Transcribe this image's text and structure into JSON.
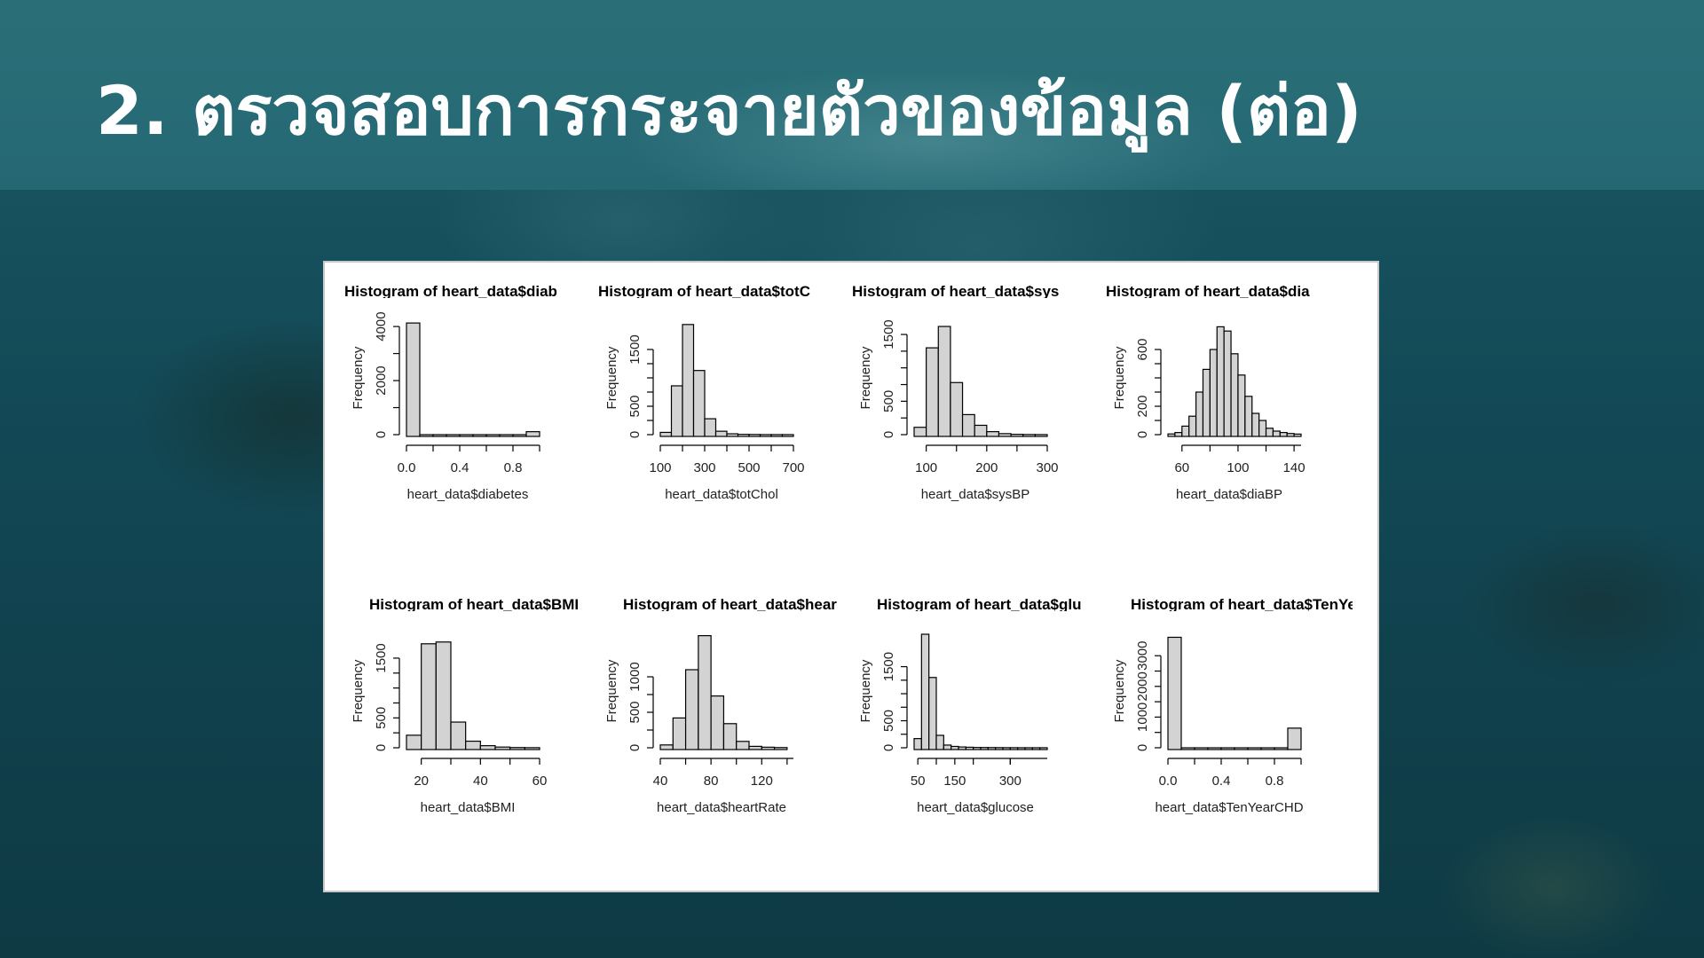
{
  "slide": {
    "title": "2. ตรวจสอบการกระจายตัวของข้อมูล (ต่อ)"
  },
  "colors": {
    "bar_fill": "#d3d3d3",
    "bar_stroke": "#000000",
    "title_text": "#ffffff",
    "background": "#134a57"
  },
  "chart_data": [
    {
      "type": "bar",
      "title": "Histogram of heart_data$diab",
      "xlabel": "heart_data$diabetes",
      "ylabel": "Frequency",
      "xlim": [
        0,
        1
      ],
      "ylim": [
        0,
        4200
      ],
      "x_ticks": [
        0.0,
        0.4,
        0.8
      ],
      "x_tick_labels": [
        "0.0",
        "0.4",
        "0.8"
      ],
      "y_ticks": [
        0,
        2000,
        4000
      ],
      "y_tick_labels": [
        "0",
        "2000",
        "4000"
      ],
      "bin_edges": [
        0.0,
        0.1,
        0.2,
        0.3,
        0.4,
        0.5,
        0.6,
        0.7,
        0.8,
        0.9,
        1.0
      ],
      "counts": [
        4130,
        0,
        0,
        0,
        0,
        0,
        0,
        0,
        0,
        110
      ]
    },
    {
      "type": "bar",
      "title": "Histogram of heart_data$totC",
      "xlabel": "heart_data$totChol",
      "ylabel": "Frequency",
      "xlim": [
        100,
        700
      ],
      "ylim": [
        0,
        2000
      ],
      "x_ticks": [
        100,
        300,
        500,
        700
      ],
      "x_tick_labels": [
        "100",
        "300",
        "500",
        "700"
      ],
      "y_ticks": [
        0,
        500,
        1500
      ],
      "y_tick_labels": [
        "0",
        "500",
        "1500"
      ],
      "bin_edges": [
        100,
        150,
        200,
        250,
        300,
        350,
        400,
        450,
        500,
        550,
        600,
        650,
        700
      ],
      "counts": [
        40,
        860,
        1940,
        1130,
        280,
        60,
        15,
        5,
        3,
        1,
        1,
        1
      ]
    },
    {
      "type": "bar",
      "title": "Histogram of heart_data$sys",
      "xlabel": "heart_data$sysBP",
      "ylabel": "Frequency",
      "xlim": [
        80,
        300
      ],
      "ylim": [
        0,
        1700
      ],
      "x_ticks": [
        100,
        200,
        300
      ],
      "x_tick_labels": [
        "100",
        "200",
        "300"
      ],
      "y_ticks": [
        0,
        500,
        1500
      ],
      "y_tick_labels": [
        "0",
        "500",
        "1500"
      ],
      "bin_edges": [
        80,
        100,
        120,
        140,
        160,
        180,
        200,
        220,
        240,
        260,
        280,
        300
      ],
      "counts": [
        110,
        1300,
        1620,
        780,
        300,
        140,
        45,
        15,
        5,
        2,
        1
      ]
    },
    {
      "type": "bar",
      "title": "Histogram of heart_data$dia",
      "xlabel": "heart_data$diaBP",
      "ylabel": "Frequency",
      "xlim": [
        50,
        145
      ],
      "ylim": [
        0,
        800
      ],
      "x_ticks": [
        60,
        100,
        140
      ],
      "x_tick_labels": [
        "60",
        "100",
        "140"
      ],
      "y_ticks": [
        0,
        200,
        600
      ],
      "y_tick_labels": [
        "0",
        "200",
        "600"
      ],
      "bin_edges": [
        50,
        55,
        60,
        65,
        70,
        75,
        80,
        85,
        90,
        95,
        100,
        105,
        110,
        115,
        120,
        125,
        130,
        135,
        140,
        145
      ],
      "counts": [
        5,
        15,
        60,
        130,
        300,
        460,
        600,
        760,
        730,
        570,
        420,
        270,
        150,
        100,
        45,
        25,
        15,
        8,
        4
      ]
    },
    {
      "type": "bar",
      "title": "Histogram of heart_data$BMI",
      "xlabel": "heart_data$BMI",
      "ylabel": "Frequency",
      "xlim": [
        15,
        60
      ],
      "ylim": [
        0,
        1900
      ],
      "x_ticks": [
        20,
        40,
        60
      ],
      "x_tick_labels": [
        "20",
        "40",
        "60"
      ],
      "y_ticks": [
        0,
        500,
        1500
      ],
      "y_tick_labels": [
        "0",
        "500",
        "1500"
      ],
      "bin_edges": [
        15,
        20,
        25,
        30,
        35,
        40,
        45,
        50,
        55,
        60
      ],
      "counts": [
        210,
        1740,
        1770,
        430,
        110,
        35,
        12,
        4,
        2
      ]
    },
    {
      "type": "bar",
      "title": "Histogram of heart_data$hear",
      "xlabel": "heart_data$heartRate",
      "ylabel": "Frequency",
      "xlim": [
        40,
        145
      ],
      "ylim": [
        0,
        1600
      ],
      "x_ticks": [
        40,
        80,
        120
      ],
      "x_tick_labels": [
        "40",
        "80",
        "120"
      ],
      "y_ticks": [
        0,
        500,
        1000
      ],
      "y_tick_labels": [
        "0",
        "500",
        "1000"
      ],
      "bin_edges": [
        40,
        50,
        60,
        70,
        80,
        90,
        100,
        110,
        120,
        130,
        140
      ],
      "counts": [
        40,
        420,
        1100,
        1580,
        730,
        340,
        90,
        20,
        8,
        3
      ]
    },
    {
      "type": "bar",
      "title": "Histogram of heart_data$glu",
      "xlabel": "heart_data$glucose",
      "ylabel": "Frequency",
      "xlim": [
        40,
        400
      ],
      "ylim": [
        0,
        2100
      ],
      "x_ticks": [
        50,
        150,
        300
      ],
      "x_tick_labels": [
        "50",
        "150",
        "300"
      ],
      "y_ticks": [
        0,
        500,
        1500
      ],
      "y_tick_labels": [
        "0",
        "500",
        "1500"
      ],
      "bin_edges": [
        40,
        60,
        80,
        100,
        120,
        140,
        160,
        180,
        200,
        220,
        240,
        260,
        280,
        300,
        320,
        340,
        360,
        380,
        400
      ],
      "counts": [
        170,
        2100,
        1300,
        230,
        50,
        25,
        15,
        10,
        6,
        5,
        4,
        3,
        2,
        2,
        1,
        1,
        1,
        1
      ]
    },
    {
      "type": "bar",
      "title": "Histogram of heart_data$TenYe",
      "xlabel": "heart_data$TenYearCHD",
      "ylabel": "Frequency",
      "xlim": [
        0,
        1
      ],
      "ylim": [
        0,
        3700
      ],
      "x_ticks": [
        0.0,
        0.4,
        0.8
      ],
      "x_tick_labels": [
        "0.0",
        "0.4",
        "0.8"
      ],
      "y_ticks": [
        0,
        1000,
        2000,
        3000
      ],
      "y_tick_labels": [
        "0",
        "1000",
        "2000",
        "3000"
      ],
      "bin_edges": [
        0.0,
        0.1,
        0.2,
        0.3,
        0.4,
        0.5,
        0.6,
        0.7,
        0.8,
        0.9,
        1.0
      ],
      "counts": [
        3600,
        0,
        0,
        0,
        0,
        0,
        0,
        0,
        0,
        640
      ]
    }
  ]
}
